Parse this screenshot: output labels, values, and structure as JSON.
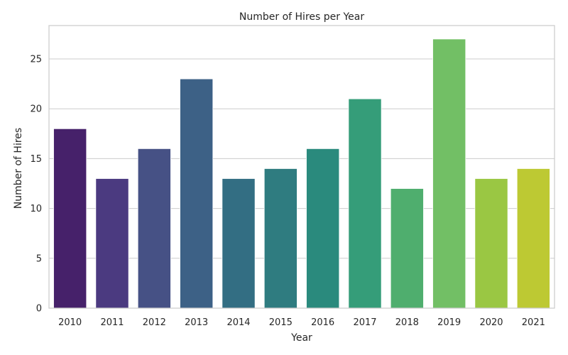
{
  "chart_data": {
    "type": "bar",
    "title": "Number of Hires per Year",
    "xlabel": "Year",
    "ylabel": "Number of Hires",
    "categories": [
      "2010",
      "2011",
      "2012",
      "2013",
      "2014",
      "2015",
      "2016",
      "2017",
      "2018",
      "2019",
      "2020",
      "2021"
    ],
    "values": [
      18,
      13,
      16,
      23,
      13,
      14,
      16,
      21,
      12,
      27,
      13,
      14
    ],
    "ylim": [
      0,
      28.35
    ],
    "yticks": [
      0,
      5,
      10,
      15,
      20,
      25
    ],
    "grid": true,
    "colors": [
      "#482173",
      "#433e85",
      "#38598c",
      "#2d708e",
      "#25858e",
      "#1e9b8a",
      "#2ab07f",
      "#52c569",
      "#86d549",
      "#c2df23",
      "#9bd93c",
      "#c0cd2e"
    ],
    "bar_colors": [
      "#46216a",
      "#4b3a80",
      "#465185",
      "#3d6186",
      "#336e83",
      "#2f7c80",
      "#2a8a7d",
      "#359d79",
      "#4fae6e",
      "#72bf65",
      "#9ac743",
      "#bdc933"
    ]
  }
}
